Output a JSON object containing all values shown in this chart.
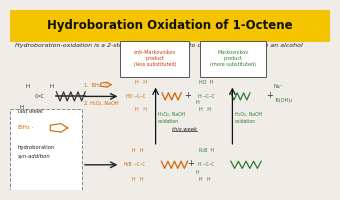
{
  "title": "Hydroboration Oxidation of 1-Octene",
  "title_bg": "#F5C400",
  "title_color": "#111100",
  "bg_color": "#f0ede8",
  "subtitle": "Hydroboration-oxidation is a 2-step reaction sequence to convert an alkene into an alcohol",
  "subtitle_color": "#222222",
  "subtitle_fontsize": 4.5,
  "title_fontsize": 8.5,
  "box1_text": "anti-Markovnikov\nproduct\n(less substituted)",
  "box2_text": "Markovnikov\nproduct\n(more substituted)",
  "step1_text": "1.  BH₃ · O",
  "step2_text": "2. H₂O₂, NaOH",
  "last_week_text": "last week",
  "this_week_text": "this week",
  "hydroboration_text": "hydroboration",
  "syn_addition_text": "syn-addition",
  "oxidation1_text": "H₂O₂, NaOH\noxidation",
  "oxidation2_text": "H₂O₂, NaOH\noxidation",
  "reagent_color": "#cc6600",
  "product_color_anti": "#cc6600",
  "product_color_mark": "#2e7d32",
  "byproduct_color": "#2e7d32",
  "oxidation_color": "#2e7d32",
  "arrow_color": "#222222",
  "box_edge_color": "#555555",
  "alkene_color": "#333333",
  "bh_product_color": "#cc6600",
  "title_bar_height": 0.175
}
